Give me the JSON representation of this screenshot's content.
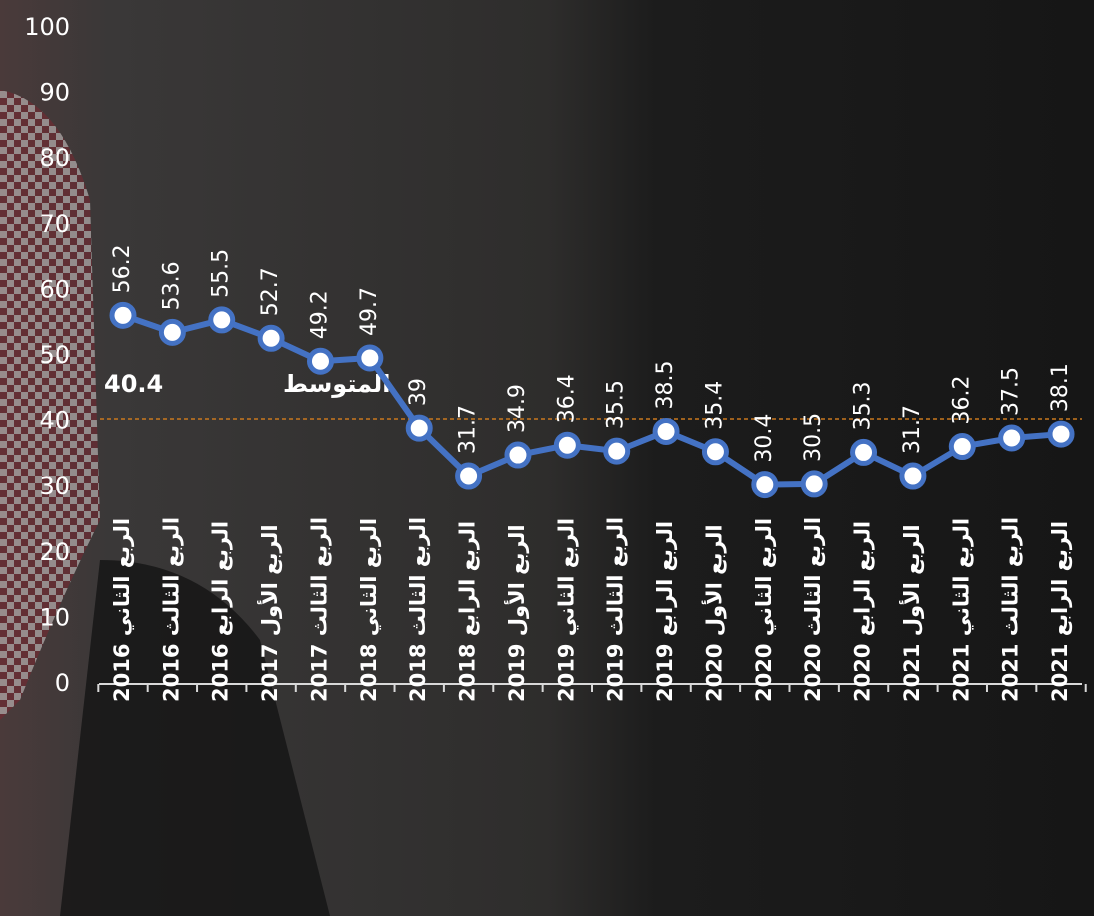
{
  "chart_data": {
    "type": "line",
    "categories": [
      "الربع الثاني 2016",
      "الربع الثالث 2016",
      "الربع الرابع 2016",
      "الربع الأول 2017",
      "الربع الثالث 2017",
      "الربع الثاني 2018",
      "الربع الثالث 2018",
      "الربع الرابع 2018",
      "الربع الأول 2019",
      "الربع الثاني 2019",
      "الربع الثالث 2019",
      "الربع الرابع 2019",
      "الربع الأول 2020",
      "الربع الثاني 2020",
      "الربع الثالث 2020",
      "الربع الرابع 2020",
      "الربع الأول 2021",
      "الربع الثاني 2021",
      "الربع الثالث 2021",
      "الربع الرابع 2021"
    ],
    "values": [
      56.2,
      53.6,
      55.5,
      52.7,
      49.2,
      49.7,
      39,
      31.7,
      34.9,
      36.4,
      35.5,
      38.5,
      35.4,
      30.4,
      30.5,
      35.3,
      31.7,
      36.2,
      37.5,
      38.1
    ],
    "color": "#4472c4",
    "average": {
      "label": "المتوسط",
      "value": 40.4,
      "color": "#c9781e"
    },
    "ylim": [
      0,
      100
    ],
    "yticks": [
      0,
      10,
      20,
      30,
      40,
      50,
      60,
      70,
      80,
      90,
      100
    ]
  }
}
